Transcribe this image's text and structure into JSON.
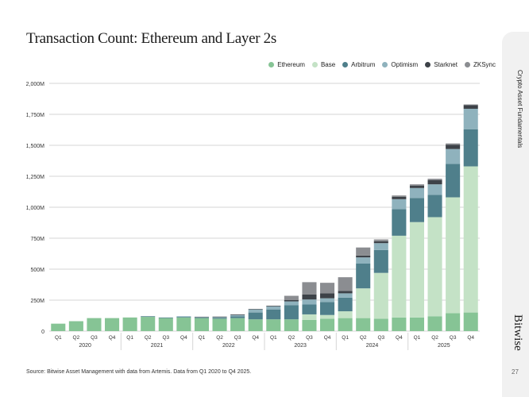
{
  "chart_data": {
    "type": "bar",
    "stacked": true,
    "title": "Transaction Count: Ethereum and Layer 2s",
    "xlabel": "",
    "ylabel": "",
    "ylim": [
      0,
      2000
    ],
    "y_ticks": [
      "0",
      "250M",
      "500M",
      "750M",
      "1,000M",
      "1,250M",
      "1,500M",
      "1,750M",
      "2,000M"
    ],
    "y_tick_values": [
      0,
      250,
      500,
      750,
      1000,
      1250,
      1500,
      1750,
      2000
    ],
    "grid": true,
    "legend_position": "top-right",
    "categories": [
      "Q1",
      "Q2",
      "Q3",
      "Q4",
      "Q1",
      "Q2",
      "Q3",
      "Q4",
      "Q1",
      "Q2",
      "Q3",
      "Q4",
      "Q1",
      "Q2",
      "Q3",
      "Q4",
      "Q1",
      "Q2",
      "Q3",
      "Q4",
      "Q1",
      "Q2",
      "Q3",
      "Q4"
    ],
    "years": [
      "2020",
      "2021",
      "2022",
      "2023",
      "2024",
      "2025"
    ],
    "series": [
      {
        "name": "Ethereum",
        "color": "#86c495",
        "values": [
          60,
          80,
          105,
          105,
          110,
          115,
          105,
          110,
          105,
          100,
          105,
          95,
          95,
          95,
          90,
          100,
          105,
          105,
          100,
          110,
          110,
          120,
          145,
          150
        ]
      },
      {
        "name": "Base",
        "color": "#c4e2c6",
        "values": [
          0,
          0,
          0,
          0,
          0,
          0,
          0,
          0,
          0,
          0,
          0,
          0,
          0,
          0,
          45,
          30,
          55,
          240,
          370,
          660,
          770,
          800,
          935,
          1180
        ]
      },
      {
        "name": "Arbitrum",
        "color": "#4f7f8b",
        "values": [
          0,
          0,
          0,
          0,
          0,
          5,
          5,
          5,
          5,
          8,
          15,
          55,
          80,
          115,
          80,
          105,
          110,
          200,
          185,
          215,
          195,
          180,
          270,
          300
        ]
      },
      {
        "name": "Optimism",
        "color": "#8fb2bd",
        "values": [
          0,
          0,
          0,
          0,
          0,
          0,
          0,
          5,
          3,
          5,
          10,
          25,
          25,
          30,
          40,
          30,
          35,
          50,
          55,
          80,
          80,
          85,
          120,
          165
        ]
      },
      {
        "name": "Starknet",
        "color": "#3d4248",
        "values": [
          0,
          0,
          0,
          0,
          0,
          0,
          0,
          0,
          3,
          4,
          5,
          4,
          5,
          10,
          40,
          40,
          20,
          15,
          15,
          20,
          20,
          35,
          35,
          30
        ]
      },
      {
        "name": "ZKSync",
        "color": "#8b8d91",
        "values": [
          0,
          0,
          0,
          0,
          0,
          0,
          0,
          0,
          0,
          0,
          0,
          0,
          0,
          35,
          100,
          85,
          110,
          65,
          15,
          10,
          10,
          10,
          10,
          5
        ]
      }
    ]
  },
  "source": "Source: Bitwise Asset Management with data from Artemis. Data from Q1 2020 to Q4 2025.",
  "sidebar": {
    "section": "Crypto Asset Fundamentals",
    "brand": "Bitwise",
    "page_number": "27"
  }
}
